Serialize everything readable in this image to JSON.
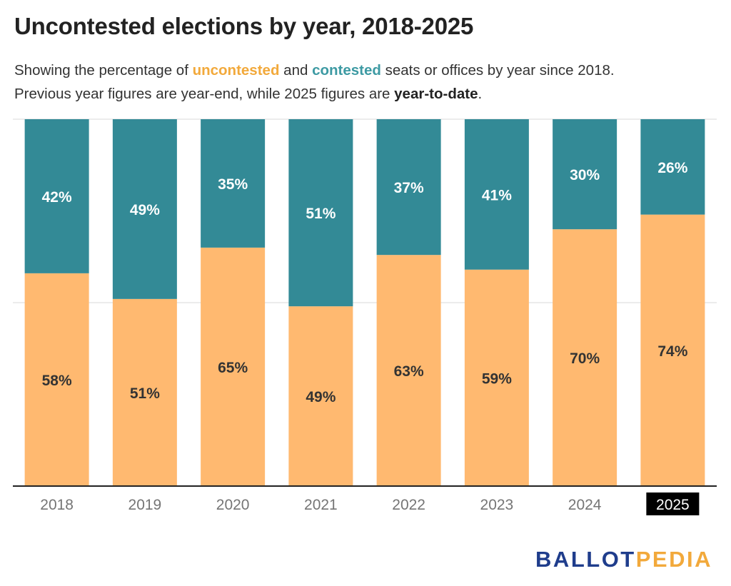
{
  "header": {
    "title": "Uncontested elections by year, 2018-2025",
    "subtitle": {
      "part1": "Showing the percentage of ",
      "uncontested": "uncontested",
      "part2": " and ",
      "contested": "contested",
      "part3": " seats or offices by year since 2018.",
      "part4": "Previous year figures are year-end, while 2025 figures are ",
      "ytd": "year-to-date",
      "part5": "."
    }
  },
  "logo": {
    "part1": "BALLOT",
    "part2": "PEDIA"
  },
  "colors": {
    "uncontested": "#ffb970",
    "contested": "#338a96",
    "grid": "#e6e6e6",
    "axis": "#222222"
  },
  "chart_data": {
    "type": "bar",
    "stacked": true,
    "categories": [
      "2018",
      "2019",
      "2020",
      "2021",
      "2022",
      "2023",
      "2024",
      "2025"
    ],
    "highlight_category": "2025",
    "series": [
      {
        "name": "uncontested",
        "values": [
          58,
          51,
          65,
          49,
          63,
          59,
          70,
          74
        ],
        "labels": [
          "58%",
          "51%",
          "65%",
          "49%",
          "63%",
          "59%",
          "70%",
          "74%"
        ]
      },
      {
        "name": "contested",
        "values": [
          42,
          49,
          35,
          51,
          37,
          41,
          30,
          26
        ],
        "labels": [
          "42%",
          "49%",
          "35%",
          "51%",
          "37%",
          "41%",
          "30%",
          "26%"
        ]
      }
    ],
    "ylim": [
      0,
      100
    ],
    "grid": true,
    "legend": "none"
  }
}
